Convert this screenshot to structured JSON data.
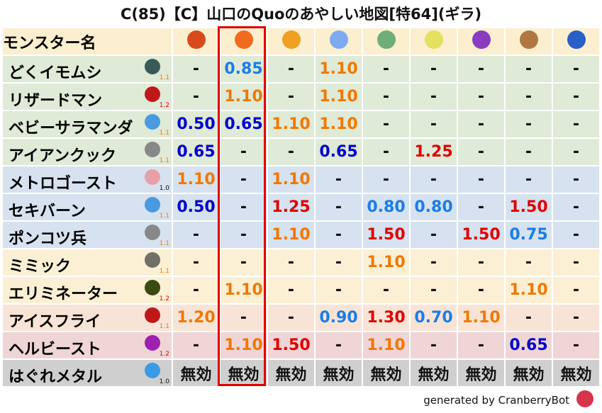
{
  "title": "C(85)【C】山口のQuoのあやしい地図[特64](ギラ)",
  "header": {
    "name_label": "モンスター名",
    "elements": [
      {
        "icon": "fire-ball-icon",
        "color": "#d84a1c"
      },
      {
        "icon": "flame-icon",
        "color": "#f26a1e"
      },
      {
        "icon": "explosion-icon",
        "color": "#f0a020"
      },
      {
        "icon": "ice-flower-icon",
        "color": "#7eaaf2"
      },
      {
        "icon": "tornado-icon",
        "color": "#6fae78"
      },
      {
        "icon": "lightning-star-icon",
        "color": "#e6e060"
      },
      {
        "icon": "darkness-swirl-icon",
        "color": "#8a3cc0"
      },
      {
        "icon": "earth-rock-icon",
        "color": "#b07840"
      },
      {
        "icon": "water-wave-icon",
        "color": "#2860c8"
      }
    ]
  },
  "highlighted_column": 2,
  "value_colors": {
    "very_weak": "#0000cc",
    "weak": "#1a7de8",
    "normal_up": "#f07800",
    "strong": "#e00000",
    "none": "#111111"
  },
  "row_colors": {
    "green": "#dfead7",
    "blue": "#d6e2ef",
    "yellow": "#fbf0d4",
    "peach": "#f8e4d6",
    "pink": "#efd5d6",
    "gray": "#cfcfcf"
  },
  "rows": [
    {
      "name": "どくイモムシ",
      "icon": "moth-icon",
      "icon_color": "#3a5a5a",
      "level": "1.1",
      "level_color": "#e88010",
      "row": "green",
      "values": [
        "-",
        "0.85",
        "-",
        "1.10",
        "-",
        "-",
        "-",
        "-",
        "-"
      ]
    },
    {
      "name": "リザードマン",
      "icon": "red-dragon-icon",
      "icon_color": "#c01818",
      "level": "1.2",
      "level_color": "#e00000",
      "row": "green",
      "values": [
        "-",
        "1.10",
        "-",
        "1.10",
        "-",
        "-",
        "-",
        "-",
        "-"
      ]
    },
    {
      "name": "ベビーサラマンダ",
      "icon": "water-drop-icon",
      "icon_color": "#4a9ae0",
      "level": "1.1",
      "level_color": "#e88010",
      "row": "green",
      "values": [
        "0.50",
        "0.65",
        "1.10",
        "1.10",
        "-",
        "-",
        "-",
        "-",
        "-"
      ]
    },
    {
      "name": "アイアンクック",
      "icon": "gear-icon",
      "icon_color": "#888888",
      "level": "1.1",
      "level_color": "#e88010",
      "row": "green",
      "values": [
        "0.65",
        "-",
        "-",
        "0.65",
        "-",
        "1.25",
        "-",
        "-",
        "-"
      ]
    },
    {
      "name": "メトロゴースト",
      "icon": "skull-icon",
      "icon_color": "#e8a0a8",
      "level": "1.0",
      "level_color": "#111111",
      "row": "blue",
      "values": [
        "1.10",
        "-",
        "1.10",
        "-",
        "-",
        "-",
        "-",
        "-",
        "-"
      ]
    },
    {
      "name": "セキバーン",
      "icon": "water-drop-icon",
      "icon_color": "#4a9ae0",
      "level": "1.1",
      "level_color": "#e88010",
      "row": "blue",
      "values": [
        "0.50",
        "-",
        "1.25",
        "-",
        "0.80",
        "0.80",
        "-",
        "1.50",
        "-"
      ]
    },
    {
      "name": "ポンコツ兵",
      "icon": "gear-icon",
      "icon_color": "#888888",
      "level": "1.1",
      "level_color": "#e88010",
      "row": "blue",
      "values": [
        "-",
        "-",
        "1.10",
        "-",
        "1.50",
        "-",
        "1.50",
        "0.75",
        "-"
      ]
    },
    {
      "name": "ミミック",
      "icon": "brick-wall-icon",
      "icon_color": "#707068",
      "level": "1.1",
      "level_color": "#e88010",
      "row": "yellow",
      "values": [
        "-",
        "-",
        "-",
        "-",
        "1.10",
        "-",
        "-",
        "-",
        "-"
      ]
    },
    {
      "name": "エリミネーター",
      "icon": "hooded-ghost-icon",
      "icon_color": "#3a4a10",
      "level": "1.2",
      "level_color": "#e00000",
      "row": "yellow",
      "values": [
        "-",
        "1.10",
        "-",
        "-",
        "-",
        "-",
        "-",
        "1.10",
        "-"
      ]
    },
    {
      "name": "アイスフライ",
      "icon": "red-dragon-icon",
      "icon_color": "#c01818",
      "level": "1.1",
      "level_color": "#e88010",
      "row": "peach",
      "values": [
        "1.20",
        "-",
        "-",
        "0.90",
        "1.30",
        "0.70",
        "1.10",
        "-",
        "-"
      ]
    },
    {
      "name": "ヘルビースト",
      "icon": "trident-icon",
      "icon_color": "#a020b0",
      "level": "1.2",
      "level_color": "#e00000",
      "row": "pink",
      "values": [
        "-",
        "1.10",
        "1.50",
        "-",
        "1.10",
        "-",
        "-",
        "0.65",
        "-"
      ]
    },
    {
      "name": "はぐれメタル",
      "icon": "slime-icon",
      "icon_color": "#3a9ae8",
      "level": "1.0",
      "level_color": "#111111",
      "row": "gray",
      "values": [
        "無効",
        "無効",
        "無効",
        "無効",
        "無効",
        "無効",
        "無効",
        "無効",
        "無効"
      ]
    }
  ],
  "footer": {
    "text": "generated by CranberryBot",
    "icon": "cranberry-bot-icon"
  }
}
